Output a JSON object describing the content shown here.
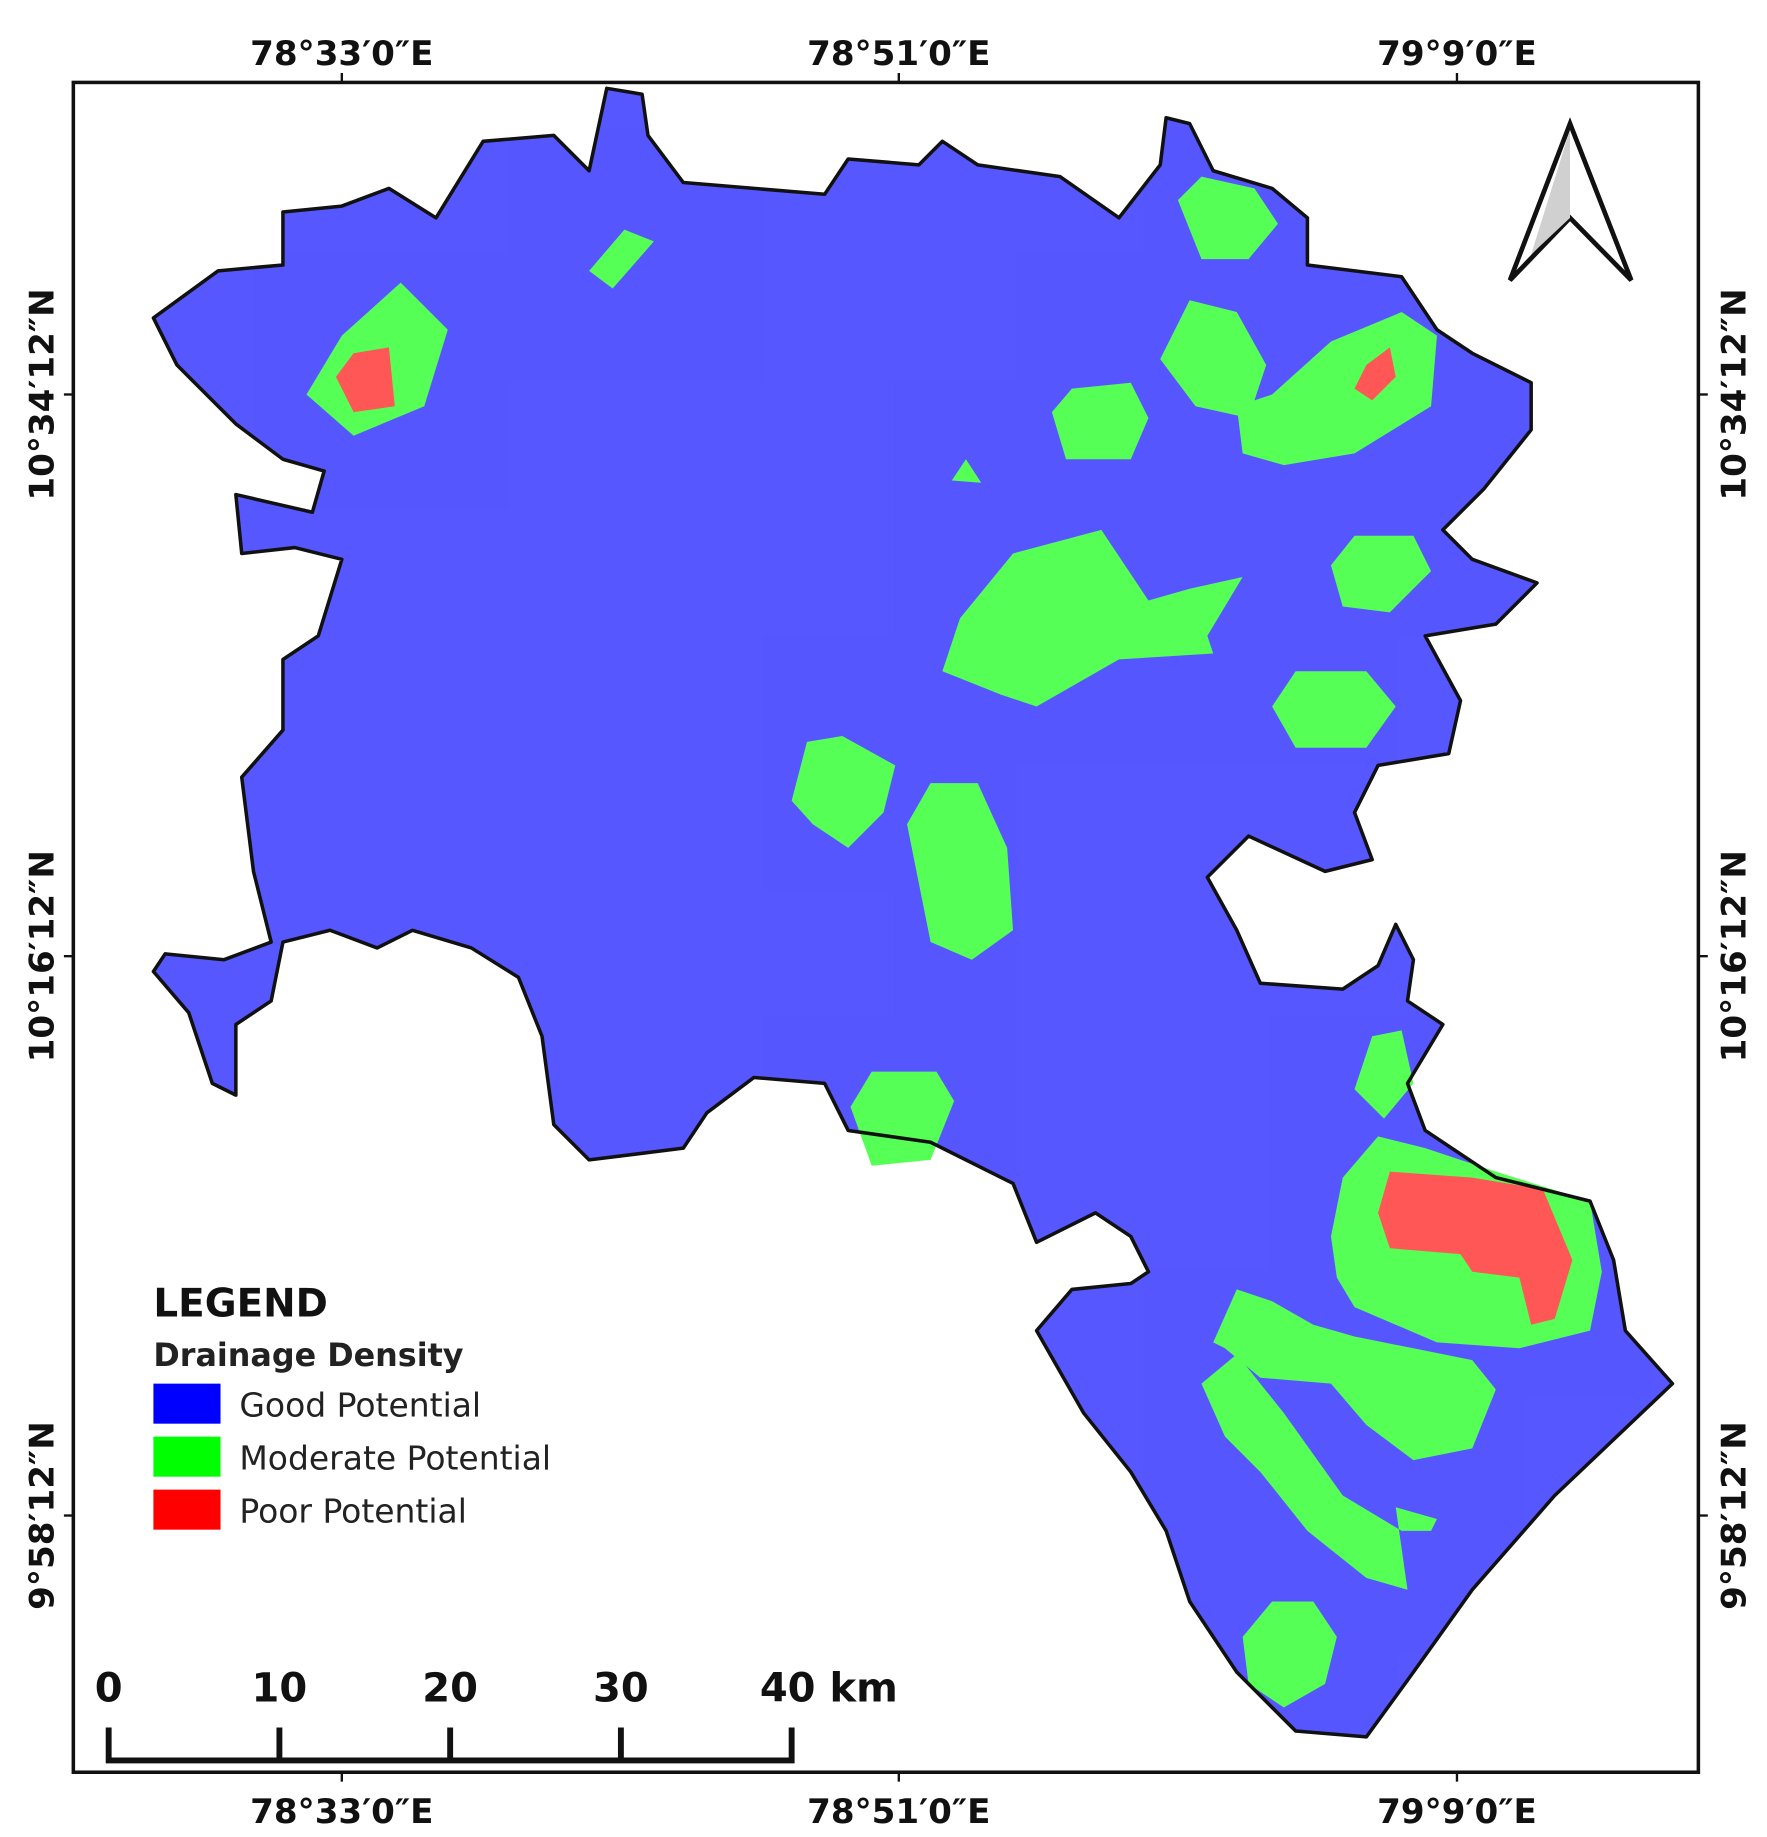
{
  "map": {
    "longitude_labels": [
      "78°33′0″E",
      "78°51′0″E",
      "79°9′0″E"
    ],
    "latitude_labels": [
      "10°34′12″N",
      "10°16′12″N",
      "9°58′12″N"
    ],
    "legend": {
      "title": "LEGEND",
      "subtitle": "Drainage Density",
      "items": [
        {
          "label": "Good Potential",
          "color": "#0000ff"
        },
        {
          "label": "Moderate Potential",
          "color": "#00ff00"
        },
        {
          "label": "Poor Potential",
          "color": "#ff0000"
        }
      ]
    },
    "scale_bar": {
      "labels": [
        "0",
        "10",
        "20",
        "30",
        "40 km"
      ]
    }
  }
}
